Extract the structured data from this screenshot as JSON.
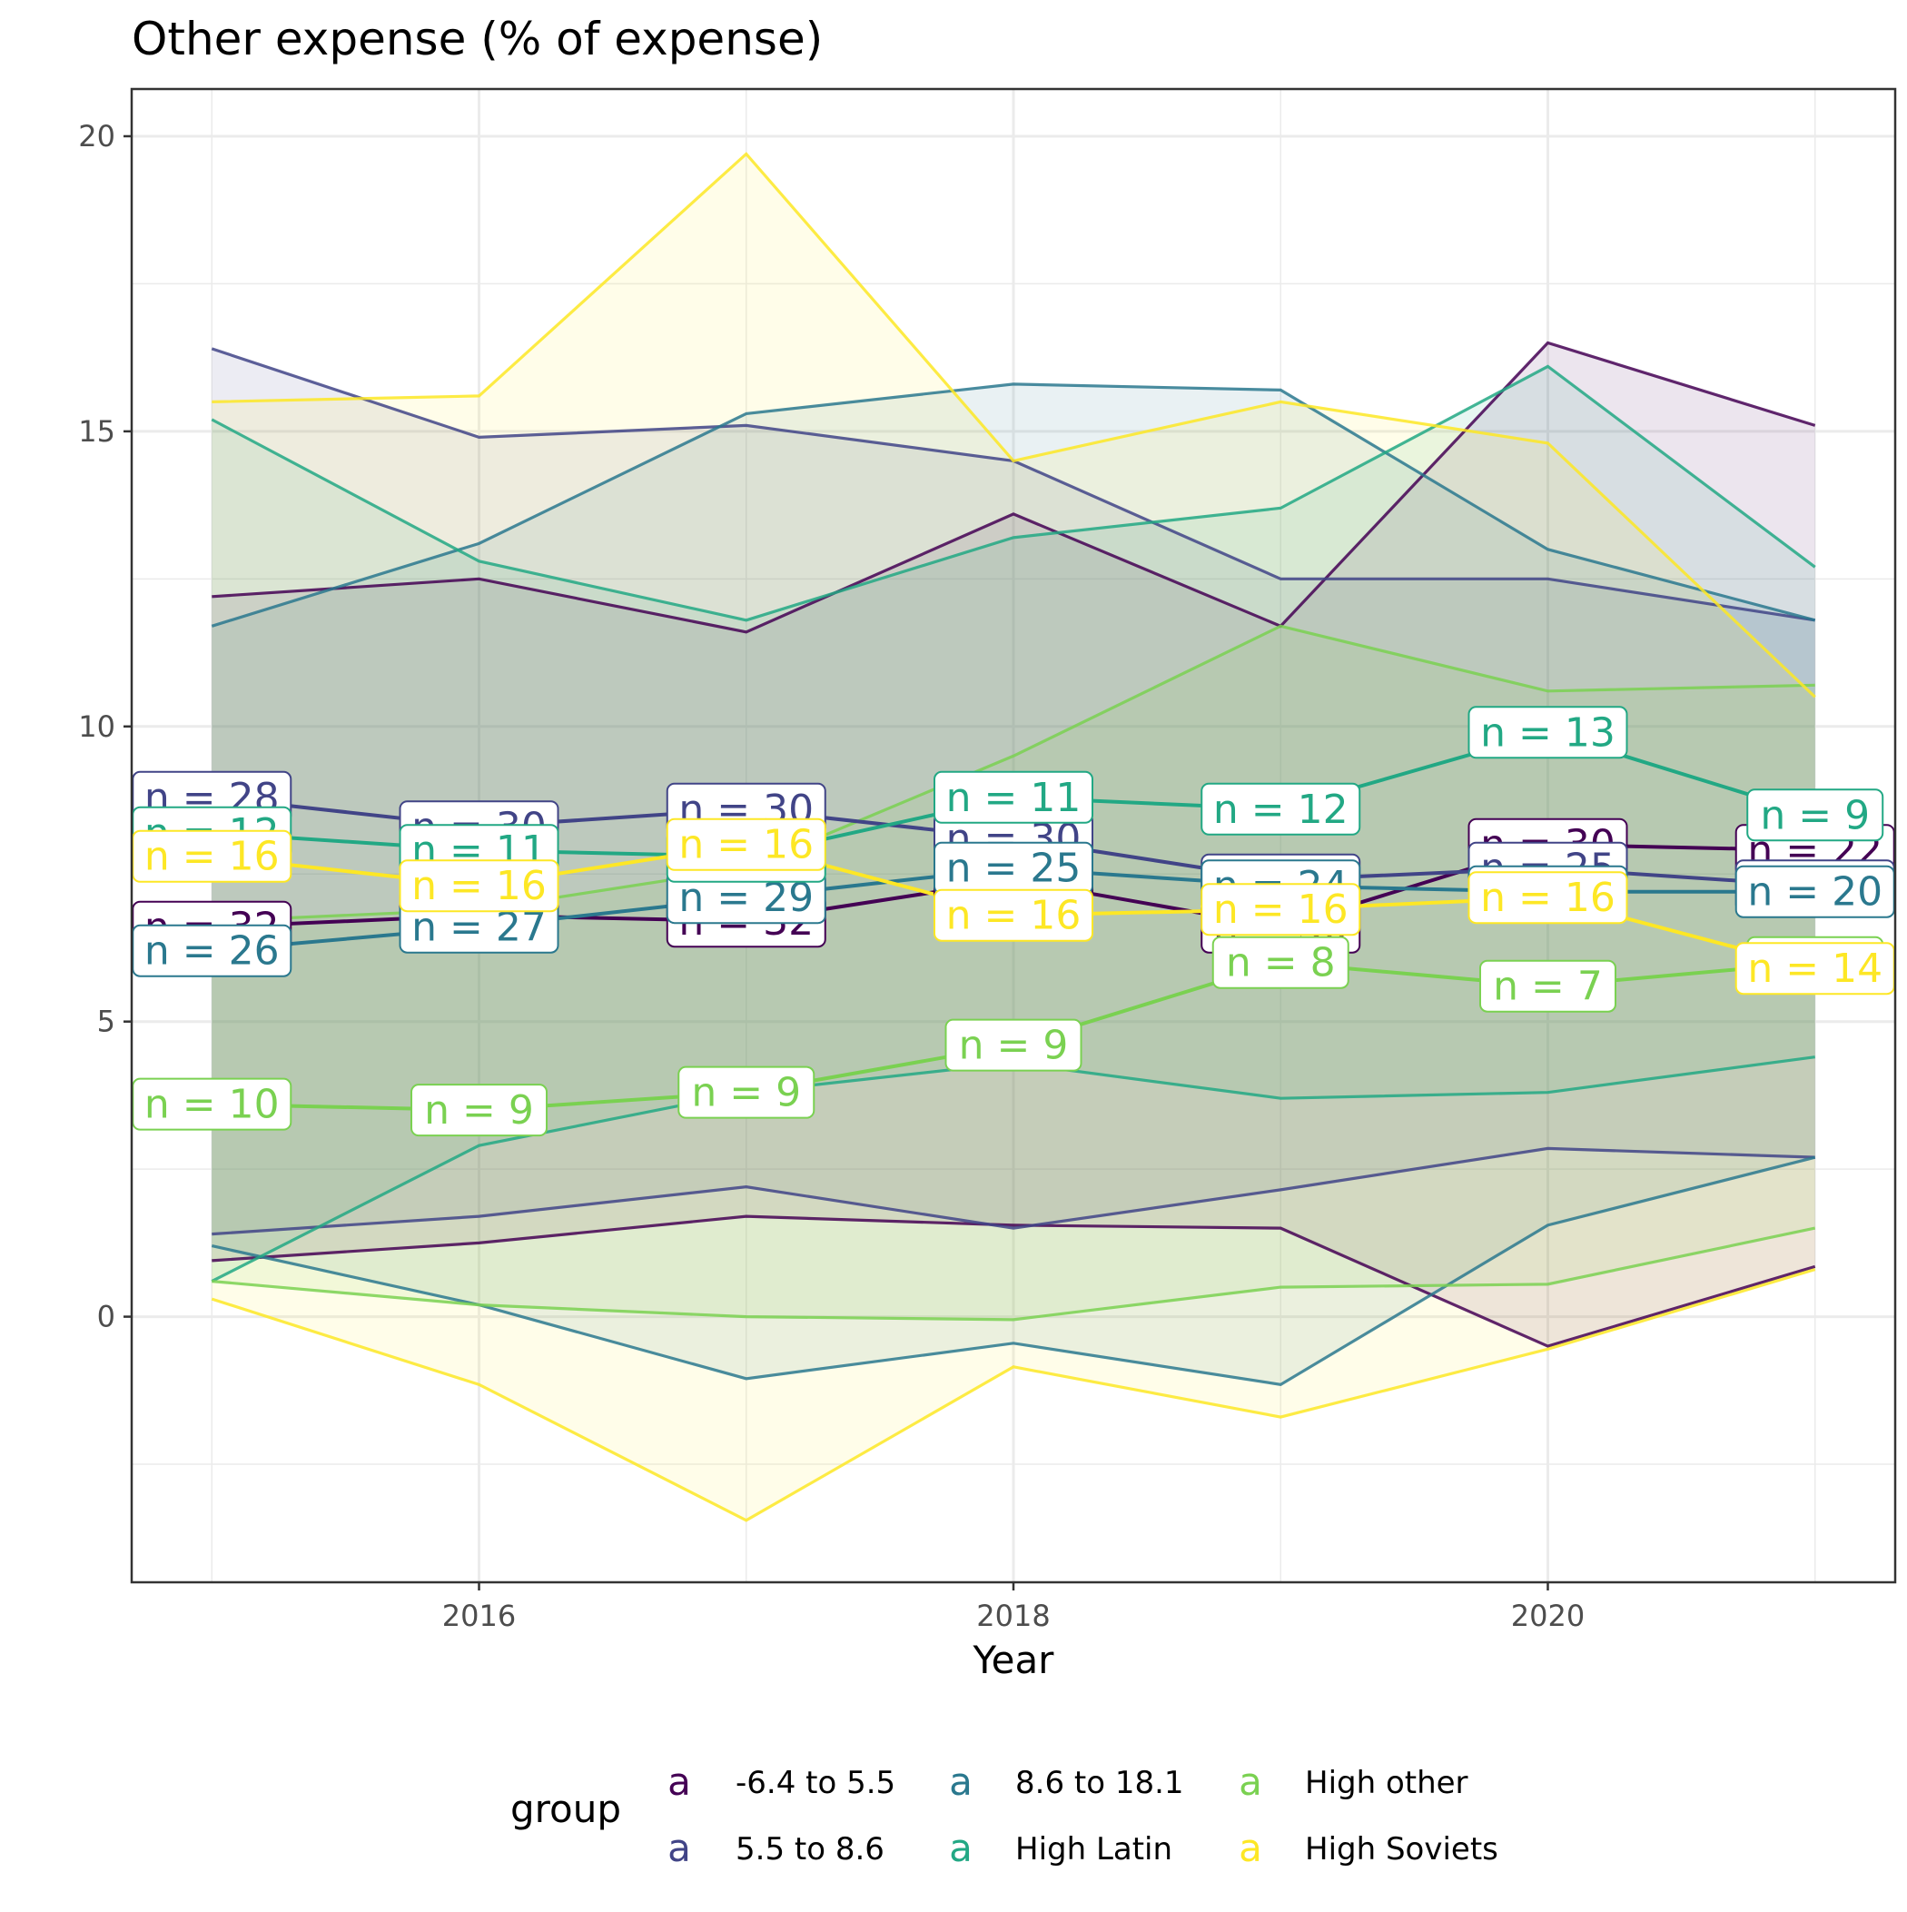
{
  "chart_data": {
    "type": "line",
    "title": "Other expense (% of expense)",
    "xlabel": "Year",
    "ylabel": "",
    "x": [
      2015,
      2016,
      2017,
      2018,
      2019,
      2020,
      2021
    ],
    "x_ticks": [
      2016,
      2018,
      2020
    ],
    "y_ticks": [
      0,
      5,
      10,
      15,
      20
    ],
    "xlim": [
      2014.7,
      2021.3
    ],
    "ylim": [
      -4.5,
      20.8
    ],
    "grid": true,
    "legend": {
      "title": "group",
      "position": "bottom",
      "key_glyph": "a",
      "entries": [
        "-6.4 to 5.5",
        "5.5 to 8.6",
        "8.6 to 18.1",
        "High Latin",
        "High other",
        "High Soviets"
      ]
    },
    "label_prefix": "n = ",
    "series": [
      {
        "name": "-6.4 to 5.5",
        "color": "#440154",
        "mean": [
          6.6,
          6.8,
          6.7,
          7.4,
          6.6,
          8.0,
          7.9
        ],
        "lower": [
          0.95,
          1.25,
          1.7,
          1.55,
          1.5,
          -0.5,
          0.85
        ],
        "upper": [
          12.2,
          12.5,
          11.6,
          13.6,
          11.7,
          16.5,
          15.1
        ],
        "n": [
          32,
          32,
          32,
          30,
          30,
          30,
          22
        ]
      },
      {
        "name": "5.5 to 8.6",
        "color": "#414487",
        "mean": [
          8.8,
          8.3,
          8.6,
          8.1,
          7.4,
          7.6,
          7.3
        ],
        "lower": [
          1.4,
          1.7,
          2.2,
          1.5,
          2.15,
          2.85,
          2.7
        ],
        "upper": [
          16.4,
          14.9,
          15.1,
          14.5,
          12.5,
          12.5,
          11.8
        ],
        "n": [
          28,
          30,
          30,
          30,
          24,
          25,
          22
        ]
      },
      {
        "name": "8.6 to 18.1",
        "color": "#2A788E",
        "mean": [
          6.2,
          6.6,
          7.1,
          7.6,
          7.3,
          7.2,
          7.2
        ],
        "lower": [
          1.2,
          0.2,
          -1.05,
          -0.45,
          -1.15,
          1.55,
          2.7
        ],
        "upper": [
          11.7,
          13.1,
          15.3,
          15.8,
          15.7,
          13.0,
          11.8
        ],
        "n": [
          26,
          27,
          29,
          25,
          24,
          25,
          20
        ]
      },
      {
        "name": "High Latin",
        "color": "#22A884",
        "mean": [
          8.2,
          7.9,
          7.8,
          8.8,
          8.6,
          9.9,
          8.5
        ],
        "lower": [
          0.6,
          2.9,
          3.8,
          4.3,
          3.7,
          3.8,
          4.4
        ],
        "upper": [
          15.2,
          12.8,
          11.8,
          13.2,
          13.7,
          16.1,
          12.7
        ],
        "n": [
          12,
          11,
          11,
          11,
          12,
          13,
          9
        ]
      },
      {
        "name": "High other",
        "color": "#7AD151",
        "mean": [
          3.6,
          3.5,
          3.8,
          4.6,
          6.0,
          5.6,
          6.0
        ],
        "lower": [
          0.6,
          0.2,
          0.0,
          -0.05,
          0.5,
          0.55,
          1.5
        ],
        "upper": [
          6.7,
          6.9,
          7.6,
          9.5,
          11.7,
          10.6,
          10.7
        ],
        "n": [
          10,
          9,
          9,
          9,
          8,
          7,
          5
        ]
      },
      {
        "name": "High Soviets",
        "color": "#FDE725",
        "mean": [
          7.8,
          7.3,
          8.0,
          6.8,
          6.9,
          7.1,
          5.9
        ],
        "lower": [
          0.3,
          -1.15,
          -3.45,
          -0.85,
          -1.7,
          -0.55,
          0.8
        ],
        "upper": [
          15.5,
          15.6,
          19.7,
          14.5,
          15.5,
          14.8,
          10.5
        ],
        "n": [
          16,
          16,
          16,
          16,
          16,
          16,
          14
        ]
      }
    ]
  }
}
